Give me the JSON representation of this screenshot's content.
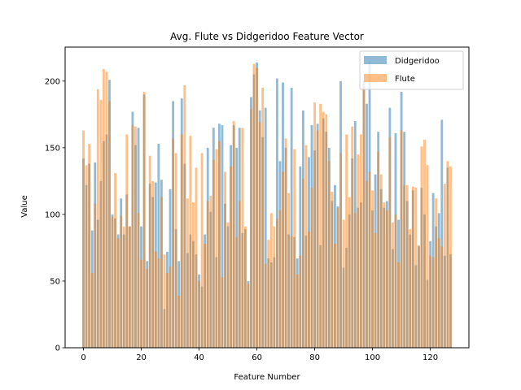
{
  "chart_data": {
    "type": "bar",
    "title": "Avg. Flute vs Didgeridoo Feature Vector",
    "xlabel": "Feature Number",
    "ylabel": "Value",
    "xlim": [
      -6.35,
      133.35
    ],
    "ylim": [
      0,
      225.5
    ],
    "xticks": [
      0,
      20,
      40,
      60,
      80,
      100,
      120
    ],
    "yticks": [
      0,
      50,
      100,
      150,
      200
    ],
    "grid": false,
    "legend_position": "top-right",
    "x": [
      0,
      1,
      2,
      3,
      4,
      5,
      6,
      7,
      8,
      9,
      10,
      11,
      12,
      13,
      14,
      15,
      16,
      17,
      18,
      19,
      20,
      21,
      22,
      23,
      24,
      25,
      26,
      27,
      28,
      29,
      30,
      31,
      32,
      33,
      34,
      35,
      36,
      37,
      38,
      39,
      40,
      41,
      42,
      43,
      44,
      45,
      46,
      47,
      48,
      49,
      50,
      51,
      52,
      53,
      54,
      55,
      56,
      57,
      58,
      59,
      60,
      61,
      62,
      63,
      64,
      65,
      66,
      67,
      68,
      69,
      70,
      71,
      72,
      73,
      74,
      75,
      76,
      77,
      78,
      79,
      80,
      81,
      82,
      83,
      84,
      85,
      86,
      87,
      88,
      89,
      90,
      91,
      92,
      93,
      94,
      95,
      96,
      97,
      98,
      99,
      100,
      101,
      102,
      103,
      104,
      105,
      106,
      107,
      108,
      109,
      110,
      111,
      112,
      113,
      114,
      115,
      116,
      117,
      118,
      119,
      120,
      121,
      122,
      123,
      124,
      125,
      126,
      127
    ],
    "series": [
      {
        "name": "Didgeridoo",
        "color": "#1f77b4",
        "alpha": 0.5,
        "values": [
          142,
          122,
          138,
          88,
          139,
          96,
          125,
          155,
          160,
          201,
          100,
          97,
          85,
          112,
          85,
          115,
          91,
          177,
          152,
          165,
          91,
          190,
          65,
          123,
          113,
          124,
          153,
          126,
          29,
          72,
          119,
          185,
          89,
          65,
          187,
          138,
          71,
          85,
          80,
          70,
          55,
          46,
          85,
          150,
          102,
          165,
          68,
          168,
          167,
          108,
          91,
          152,
          167,
          150,
          165,
          86,
          89,
          50,
          188,
          205,
          214,
          178,
          158,
          180,
          67,
          64,
          68,
          202,
          140,
          199,
          150,
          85,
          195,
          83,
          67,
          136,
          178,
          84,
          143,
          167,
          148,
          168,
          77,
          172,
          162,
          150,
          110,
          122,
          106,
          200,
          60,
          75,
          100,
          142,
          170,
          105,
          109,
          200,
          183,
          215,
          103,
          130,
          162,
          119,
          105,
          110,
          180,
          74,
          161,
          96,
          192,
          162,
          110,
          85,
          118,
          62,
          76,
          120,
          100,
          51,
          80,
          116,
          91,
          101,
          171,
          69,
          135,
          70
        ]
      },
      {
        "name": "Flute",
        "color": "#ff7f0e",
        "alpha": 0.5,
        "values": [
          163,
          137,
          153,
          56,
          108,
          194,
          186,
          209,
          207,
          185,
          98,
          131,
          82,
          99,
          91,
          160,
          91,
          167,
          166,
          101,
          66,
          192,
          59,
          144,
          125,
          72,
          67,
          113,
          70,
          56,
          61,
          157,
          146,
          39,
          160,
          197,
          112,
          159,
          109,
          135,
          50,
          146,
          78,
          110,
          114,
          141,
          149,
          155,
          53,
          132,
          94,
          136,
          170,
          83,
          110,
          165,
          91,
          48,
          179,
          213,
          210,
          169,
          195,
          63,
          81,
          101,
          91,
          97,
          103,
          132,
          157,
          116,
          84,
          149,
          55,
          69,
          127,
          152,
          87,
          120,
          184,
          163,
          183,
          177,
          175,
          140,
          117,
          78,
          105,
          146,
          96,
          160,
          113,
          166,
          101,
          145,
          160,
          195,
          125,
          132,
          118,
          86,
          147,
          130,
          109,
          103,
          158,
          94,
          100,
          64,
          163,
          122,
          122,
          89,
          121,
          120,
          77,
          151,
          156,
          137,
          69,
          68,
          112,
          82,
          76,
          123,
          140,
          136
        ]
      }
    ]
  }
}
